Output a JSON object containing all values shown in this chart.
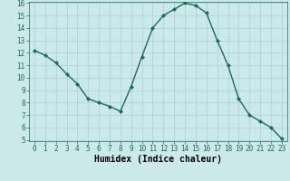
{
  "x": [
    0,
    1,
    2,
    3,
    4,
    5,
    6,
    7,
    8,
    9,
    10,
    11,
    12,
    13,
    14,
    15,
    16,
    17,
    18,
    19,
    20,
    21,
    22,
    23
  ],
  "y": [
    12.2,
    11.8,
    11.2,
    10.3,
    9.5,
    8.3,
    8.0,
    7.7,
    7.3,
    9.3,
    11.7,
    14.0,
    15.0,
    15.5,
    16.0,
    15.8,
    15.2,
    13.0,
    11.0,
    8.3,
    7.0,
    6.5,
    6.0,
    5.1
  ],
  "line_color": "#1a6b5a",
  "marker": "D",
  "marker_size": 2,
  "bg_color": "#cce9e9",
  "grid_color": "#aed4d4",
  "xlabel": "Humidex (Indice chaleur)",
  "ylim": [
    5,
    16
  ],
  "xlim": [
    -0.5,
    23.5
  ],
  "yticks": [
    5,
    6,
    7,
    8,
    9,
    10,
    11,
    12,
    13,
    14,
    15,
    16
  ],
  "xticks": [
    0,
    1,
    2,
    3,
    4,
    5,
    6,
    7,
    8,
    9,
    10,
    11,
    12,
    13,
    14,
    15,
    16,
    17,
    18,
    19,
    20,
    21,
    22,
    23
  ],
  "tick_fontsize": 5.5,
  "label_fontsize": 7
}
